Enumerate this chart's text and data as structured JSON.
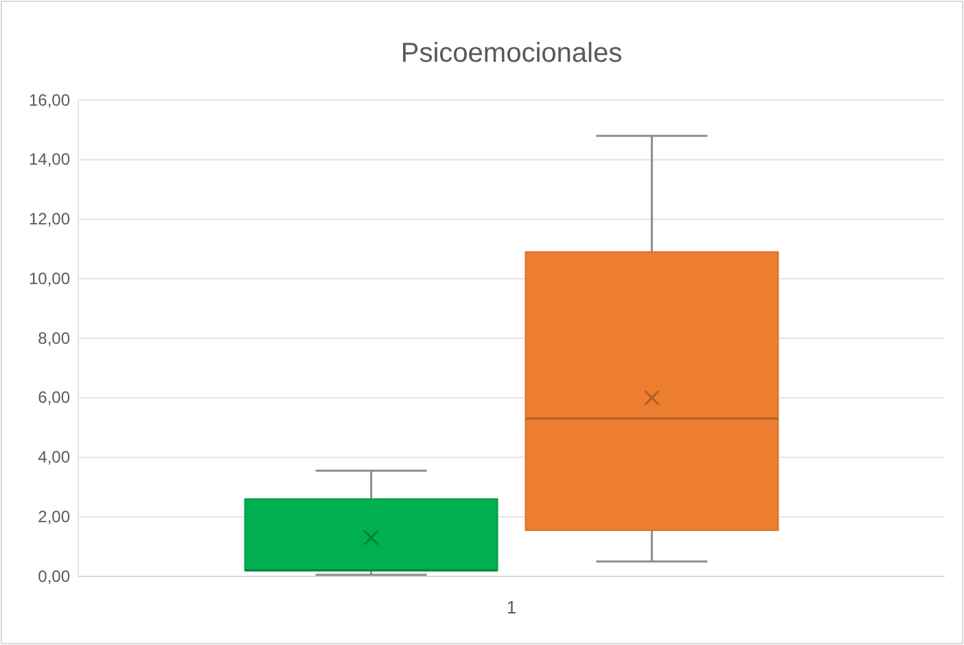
{
  "chart_data": {
    "type": "box",
    "title": "Psicoemocionales",
    "categories": [
      "1"
    ],
    "series": [
      {
        "color": "#00b050",
        "boxes": [
          {
            "low": 0.05,
            "q1": 0.2,
            "median": 0.2,
            "q3": 2.6,
            "high": 3.55,
            "mean": 1.3
          }
        ]
      },
      {
        "color": "#ed7d31",
        "boxes": [
          {
            "low": 0.5,
            "q1": 1.55,
            "median": 5.3,
            "q3": 10.9,
            "high": 14.8,
            "mean": 6.0
          }
        ]
      }
    ],
    "ylim": [
      0,
      16
    ],
    "yticks": [
      {
        "value": 0,
        "label": "0,00"
      },
      {
        "value": 2,
        "label": "2,00"
      },
      {
        "value": 4,
        "label": "4,00"
      },
      {
        "value": 6,
        "label": "6,00"
      },
      {
        "value": 8,
        "label": "8,00"
      },
      {
        "value": 10,
        "label": "10,00"
      },
      {
        "value": 12,
        "label": "12,00"
      },
      {
        "value": 14,
        "label": "14,00"
      },
      {
        "value": 16,
        "label": "16,00"
      }
    ],
    "grid": "y"
  }
}
